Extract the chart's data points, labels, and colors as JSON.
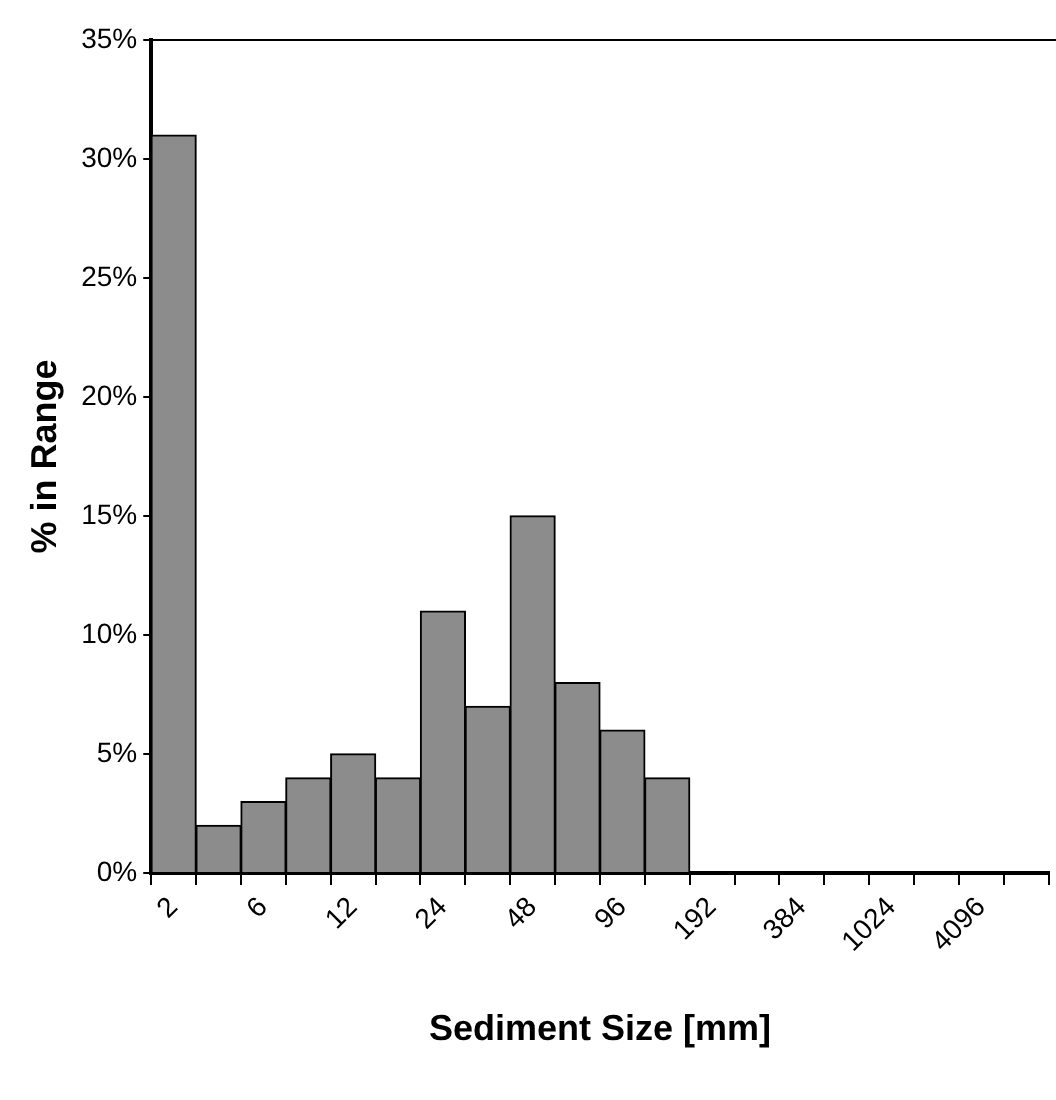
{
  "chart_data": {
    "type": "bar",
    "xlabel": "Sediment Size [mm]",
    "ylabel": "% in Range",
    "categories": [
      "2",
      null,
      "6",
      null,
      "12",
      null,
      "24",
      null,
      "48",
      null,
      "96",
      null,
      "192",
      null,
      "384",
      null,
      "1024",
      null,
      "4096",
      null
    ],
    "values": [
      31,
      2,
      3,
      4,
      5,
      4,
      11,
      7,
      15,
      8,
      6,
      4,
      0,
      0,
      0,
      0,
      0,
      0,
      0,
      0
    ],
    "color": "#8c8c8c",
    "ylim": [
      0,
      35
    ],
    "yticks": [
      {
        "value": 0,
        "label": "0%"
      },
      {
        "value": 5,
        "label": "5%"
      },
      {
        "value": 10,
        "label": "10%"
      },
      {
        "value": 15,
        "label": "15%"
      },
      {
        "value": 20,
        "label": "20%"
      },
      {
        "value": 25,
        "label": "25%"
      },
      {
        "value": 30,
        "label": "30%"
      },
      {
        "value": 35,
        "label": "35%"
      }
    ],
    "grid": false,
    "legend": false
  }
}
